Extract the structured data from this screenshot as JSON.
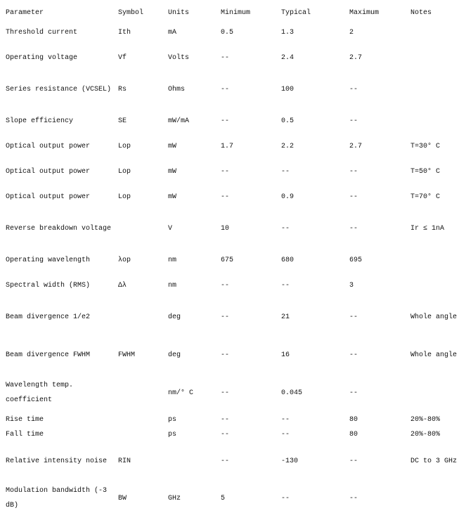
{
  "table": {
    "headers": [
      "Parameter",
      "Symbol",
      "Units",
      "Minimum",
      "Typical",
      "Maximum",
      "Notes"
    ],
    "rows": [
      [
        "Threshold current",
        "Ith",
        "mA",
        "0.5",
        "1.3",
        "2",
        ""
      ],
      [
        "Operating voltage",
        "Vf",
        "Volts",
        "--",
        "2.4",
        "2.7",
        ""
      ],
      [
        "Series resistance (VCSEL)",
        "Rs",
        "Ohms",
        "--",
        "100",
        "--",
        ""
      ],
      [
        "Slope efficiency",
        "SE",
        "mW/mA",
        "--",
        "0.5",
        "--",
        ""
      ],
      [
        "Optical output power",
        "Lop",
        "mW",
        "1.7",
        "2.2",
        "2.7",
        "T=30° C"
      ],
      [
        "Optical output power",
        "Lop",
        "mW",
        "--",
        "--",
        "--",
        "T=50° C"
      ],
      [
        "Optical output power",
        "Lop",
        "mW",
        "--",
        "0.9",
        "--",
        "T=70° C"
      ],
      [
        "Reverse breakdown voltage",
        "",
        "V",
        "10",
        "--",
        "--",
        "Ir ≤ 1nA"
      ],
      [
        "Operating wavelength",
        "λop",
        "nm",
        "675",
        "680",
        "695",
        ""
      ],
      [
        "Spectral width (RMS)",
        "Δλ",
        "nm",
        "--",
        "--",
        "3",
        ""
      ],
      [
        "Beam divergence 1/e2",
        "",
        "deg",
        "--",
        "21",
        "--",
        "Whole angle"
      ],
      [
        "Beam divergence FWHM",
        "FWHM",
        "deg",
        "--",
        "16",
        "--",
        "Whole angle"
      ],
      [
        "Wavelength temp. coefficient",
        "",
        "nm/° C",
        "--",
        "0.045",
        "--",
        ""
      ],
      [
        "Rise time",
        "",
        "ps",
        "--",
        "--",
        "80",
        "20%-80%"
      ],
      [
        "Fall time",
        "",
        "ps",
        "--",
        "--",
        "80",
        "20%-80%"
      ],
      [
        "Relative intensity noise",
        "RIN",
        "",
        "--",
        "-130",
        "--",
        "DC to 3 GHz"
      ],
      [
        "Modulation bandwidth (-3 dB)",
        "BW",
        "GHz",
        "5",
        "--",
        "--",
        ""
      ]
    ]
  }
}
